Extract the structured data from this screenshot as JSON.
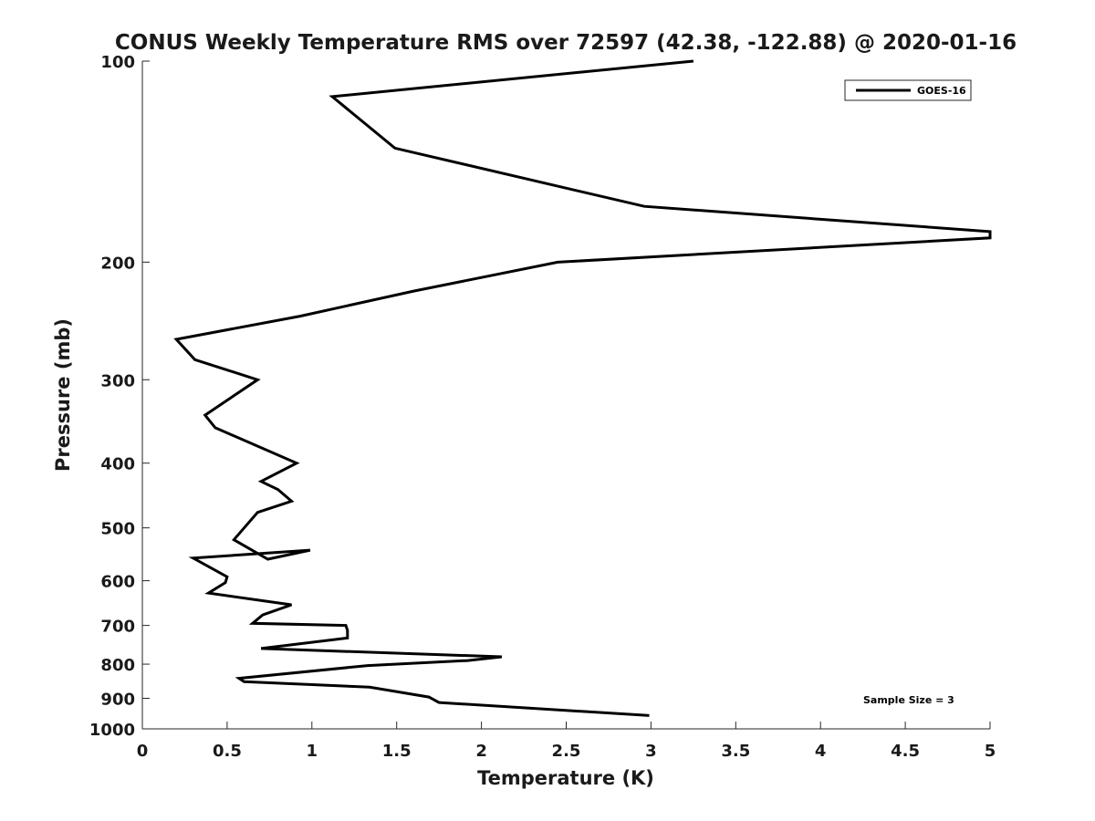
{
  "chart_data": {
    "type": "line",
    "title": "CONUS Weekly Temperature RMS over 72597 (42.38, -122.88) @ 2020-01-16",
    "xlabel": "Temperature (K)",
    "ylabel": "Pressure (mb)",
    "xlim": [
      0,
      5
    ],
    "ylim": [
      100,
      1000
    ],
    "y_scale": "log",
    "y_reversed": true,
    "grid": false,
    "x_ticks": [
      0,
      0.5,
      1,
      1.5,
      2,
      2.5,
      3,
      3.5,
      4,
      4.5,
      5
    ],
    "x_tick_labels": [
      "0",
      "0.5",
      "1",
      "1.5",
      "2",
      "2.5",
      "3",
      "3.5",
      "4",
      "4.5",
      "5"
    ],
    "y_ticks": [
      100,
      200,
      300,
      400,
      500,
      600,
      700,
      800,
      900,
      1000
    ],
    "y_tick_labels": [
      "100",
      "200",
      "300",
      "400",
      "500",
      "600",
      "700",
      "800",
      "900",
      "1000"
    ],
    "legend_position": "top-right",
    "series": [
      {
        "name": "GOES-16",
        "color": "#000000",
        "x": [
          3.25,
          1.12,
          1.49,
          2.96,
          5.0,
          5.0,
          2.45,
          1.6,
          0.93,
          0.2,
          0.31,
          0.68,
          0.37,
          0.43,
          0.91,
          0.7,
          0.8,
          0.88,
          0.68,
          0.54,
          0.74,
          0.99,
          0.3,
          0.5,
          0.49,
          0.39,
          0.88,
          0.71,
          0.65,
          1.2,
          1.21,
          1.21,
          0.7,
          2.12,
          1.92,
          1.33,
          0.57,
          0.6,
          1.34,
          1.69,
          1.75,
          2.99
        ],
        "y": [
          100,
          113,
          135,
          165,
          180,
          184,
          200,
          221,
          241,
          261,
          280,
          300,
          339,
          354,
          400,
          426,
          438,
          456,
          474,
          521,
          557,
          540,
          555,
          592,
          604,
          626,
          652,
          675,
          695,
          700,
          712,
          731,
          758,
          780,
          790,
          804,
          840,
          850,
          866,
          896,
          913,
          955
        ]
      }
    ],
    "annotations": [
      "Sample Size = 3"
    ]
  }
}
